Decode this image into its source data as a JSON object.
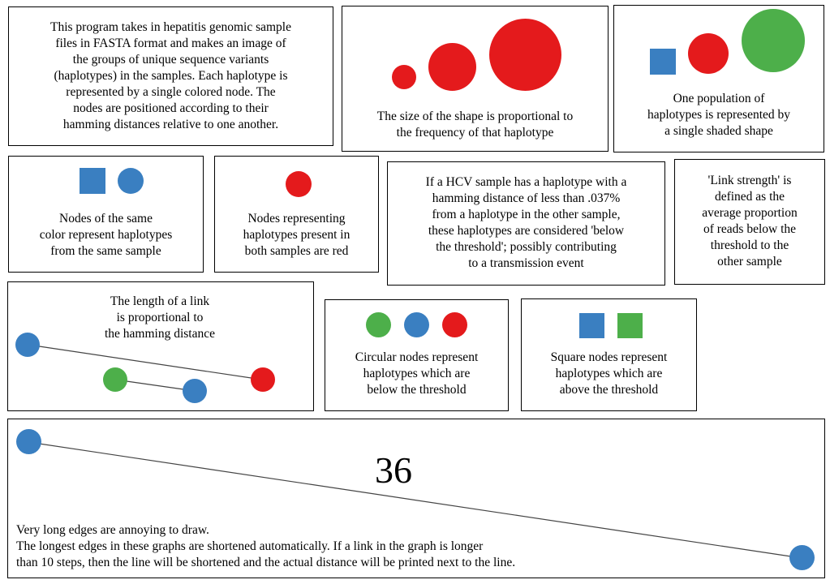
{
  "colors": {
    "red": "#e41a1c",
    "blue": "#3a7fc1",
    "green": "#4daf4a",
    "line": "#444444"
  },
  "intro": {
    "text": "This program takes in hepatitis genomic sample\nfiles in FASTA format and makes an image of\nthe groups of unique sequence variants\n(haplotypes) in the samples. Each haplotype is\nrepresented by a single colored node. The\nnodes are positioned according to their\nhamming distances relative to one another."
  },
  "size_panel": {
    "text": "The size of the shape is proportional to\nthe frequency of that haplotype",
    "shapes": [
      "red-circle-small",
      "red-circle-medium",
      "red-circle-large"
    ]
  },
  "population_panel": {
    "text": "One population of\nhaplotypes is represented by\na single shaded shape",
    "shapes": [
      "blue-square",
      "red-circle",
      "green-circle"
    ]
  },
  "same_color_panel": {
    "text": "Nodes of the same\ncolor represent haplotypes\nfrom the same sample",
    "shapes": [
      "blue-square",
      "blue-circle"
    ]
  },
  "red_nodes_panel": {
    "text": "Nodes representing\nhaplotypes present in\nboth samples are red",
    "shapes": [
      "red-circle"
    ]
  },
  "threshold_panel": {
    "text": "If a HCV sample has a haplotype with a\nhamming distance of less than .037%\nfrom a haplotype in the other sample,\nthese haplotypes are considered 'below\nthe threshold'; possibly contributing\nto a transmission event"
  },
  "link_strength_panel": {
    "text": "'Link strength' is\ndefined as the\naverage proportion\nof reads below the\nthreshold to the\nother sample"
  },
  "link_length_panel": {
    "text": "The length of a link\nis proportional to\nthe hamming distance",
    "shapes": [
      "blue-circle",
      "red-circle",
      "green-circle",
      "blue-circle"
    ]
  },
  "circular_panel": {
    "text": "Circular nodes represent\nhaplotypes which are\nbelow the threshold",
    "shapes": [
      "green-circle",
      "blue-circle",
      "red-circle"
    ]
  },
  "square_panel": {
    "text": "Square nodes represent\nhaplotypes which are\nabove the threshold",
    "shapes": [
      "blue-square",
      "green-square"
    ]
  },
  "long_edge_panel": {
    "distance_label": "36",
    "text": "Very long edges are annoying to draw.\nThe longest edges in these graphs are shortened automatically. If a link in the graph is longer\nthan 10 steps, then the line will be shortened and the actual distance will be printed next to the line.",
    "shapes": [
      "blue-circle",
      "blue-circle"
    ]
  }
}
